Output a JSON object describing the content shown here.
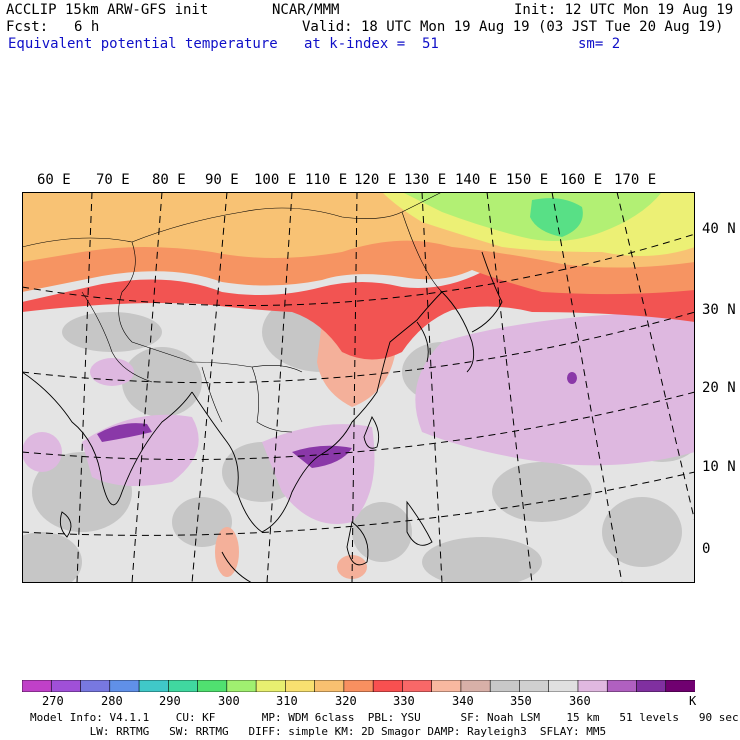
{
  "header": {
    "model": "ACCLIP 15km ARW-GFS init",
    "org": "NCAR/MMM",
    "init": "Init: 12 UTC Mon 19 Aug 19",
    "fcst_label": "Fcst:",
    "fcst_value": "6 h",
    "valid": "Valid: 18 UTC Mon 19 Aug 19 (03 JST Tue 20 Aug 19)",
    "field": "Equivalent potential temperature",
    "level": "at k-index =  51",
    "smooth": "sm= 2"
  },
  "map": {
    "lon_labels": [
      "60 E",
      "70 E",
      "80 E",
      "90 E",
      "100 E",
      "110 E",
      "120 E",
      "130 E",
      "140 E",
      "150 E",
      "160 E",
      "170 E"
    ],
    "lat_labels": [
      "40 N",
      "30 N",
      "20 N",
      "10 N",
      "0"
    ]
  },
  "colorbar": {
    "colors": [
      "#c040c8",
      "#a050d8",
      "#7878e0",
      "#6090e8",
      "#40c8c8",
      "#40d8a0",
      "#50e070",
      "#a0f070",
      "#e8f070",
      "#f8e070",
      "#f8c070",
      "#f89060",
      "#f85050",
      "#f86868",
      "#f8b8a0",
      "#d8b0a8",
      "#c8c8c8",
      "#d0d0d0",
      "#e0e0e0",
      "#e0b8e0",
      "#b060c0",
      "#8030a0",
      "#700070"
    ],
    "ticks": [
      "270",
      "280",
      "290",
      "300",
      "310",
      "320",
      "330",
      "340",
      "350",
      "360"
    ],
    "unit": "K"
  },
  "footer": {
    "line1": "Model Info: V4.1.1    CU: KF       MP: WDM 6class  PBL: YSU      SF: Noah LSM    15 km   51 levels   90 sec",
    "line2": "         LW: RRTMG   SW: RRTMG   DIFF: simple KM: 2D Smagor DAMP: Rayleigh3  SFLAY: MM5"
  }
}
